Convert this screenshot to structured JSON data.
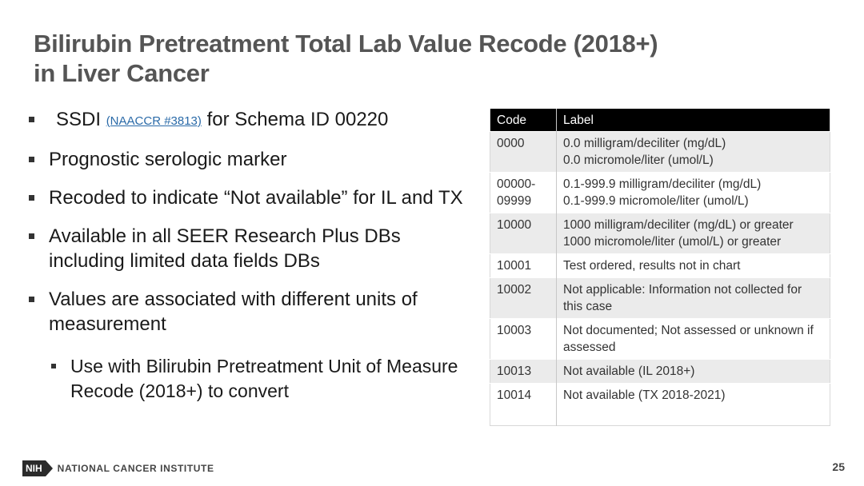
{
  "slide": {
    "title_line1": "Bilirubin Pretreatment Total Lab Value Recode (2018+)",
    "title_line2": "in Liver Cancer",
    "page_number": "25"
  },
  "bullets": {
    "b0_prefix": "SSDI",
    "b0_link": "(NAACCR #3813)",
    "b0_suffix": "for Schema ID 00220",
    "b1": "Prognostic serologic marker",
    "b2": "Recoded to indicate “Not available” for IL and TX",
    "b3": "Available in all SEER Research Plus DBs including limited data fields DBs",
    "b4": "Values are associated with different units of measurement",
    "b5": "Use with Bilirubin Pretreatment Unit of Measure Recode (2018+) to convert"
  },
  "table": {
    "headers": [
      "Code",
      "Label"
    ],
    "rows": [
      {
        "code": "0000",
        "label": [
          "0.0 milligram/deciliter (mg/dL)",
          "0.0 micromole/liter (umol/L)"
        ]
      },
      {
        "code": "00000-\n09999",
        "label": [
          "0.1-999.9 milligram/deciliter (mg/dL)",
          "0.1-999.9 micromole/liter (umol/L)"
        ]
      },
      {
        "code": "10000",
        "label": [
          "1000 milligram/deciliter (mg/dL) or greater",
          "1000 micromole/liter (umol/L) or greater"
        ]
      },
      {
        "code": "10001",
        "label": [
          "Test ordered, results not in chart"
        ]
      },
      {
        "code": "10002",
        "label": [
          "Not applicable: Information not collected for this case"
        ]
      },
      {
        "code": "10003",
        "label": [
          "Not documented; Not assessed or unknown if assessed"
        ]
      },
      {
        "code": "10013",
        "label": [
          "Not available (IL 2018+)"
        ]
      },
      {
        "code": "10014",
        "label": [
          "Not available (TX 2018-2021)"
        ]
      }
    ]
  },
  "footer": {
    "logo_text": "NIH",
    "org_name": "NATIONAL CANCER INSTITUTE"
  }
}
